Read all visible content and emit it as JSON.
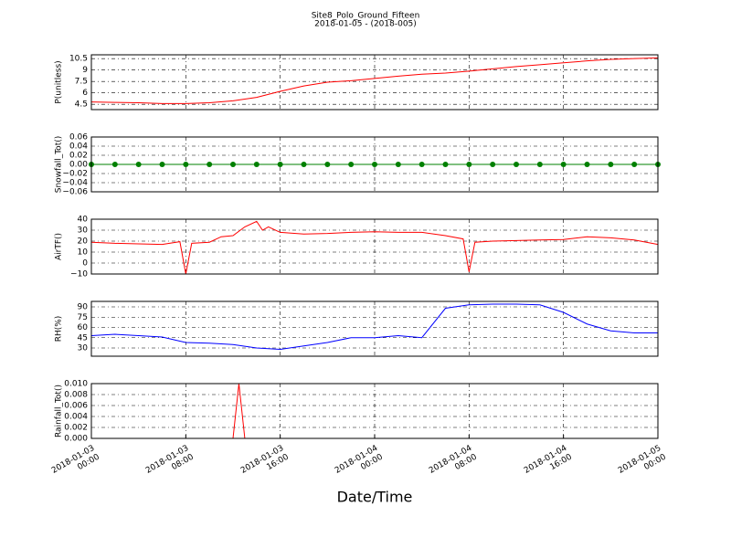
{
  "chart_data": [
    {
      "type": "line",
      "title": "Site8_Polo_Ground_Fifteen",
      "subtitle": "2018-01-05 - (2018-005)",
      "ylabel": "P(unitless)",
      "color": "#ff0000",
      "grid": true,
      "x": [
        "2018-01-03 00:00",
        "2018-01-03 02:00",
        "2018-01-03 04:00",
        "2018-01-03 06:00",
        "2018-01-03 08:00",
        "2018-01-03 10:00",
        "2018-01-03 12:00",
        "2018-01-03 14:00",
        "2018-01-03 16:00",
        "2018-01-03 18:00",
        "2018-01-03 20:00",
        "2018-01-03 22:00",
        "2018-01-04 00:00",
        "2018-01-04 02:00",
        "2018-01-04 04:00",
        "2018-01-04 06:00",
        "2018-01-04 08:00",
        "2018-01-04 10:00",
        "2018-01-04 12:00",
        "2018-01-04 14:00",
        "2018-01-04 16:00",
        "2018-01-04 18:00",
        "2018-01-04 20:00",
        "2018-01-04 22:00",
        "2018-01-05 00:00"
      ],
      "values": [
        4.8,
        4.75,
        4.7,
        4.6,
        4.6,
        4.7,
        4.95,
        5.4,
        6.2,
        6.9,
        7.4,
        7.6,
        7.9,
        8.2,
        8.45,
        8.6,
        8.85,
        9.15,
        9.45,
        9.7,
        9.95,
        10.2,
        10.4,
        10.5,
        10.6
      ],
      "ylim": [
        3.8,
        11.0
      ],
      "yticks": [
        4.5,
        6.0,
        7.5,
        9.0,
        10.5
      ]
    },
    {
      "type": "line",
      "ylabel": "Snowfall_Tot()",
      "color": "#008000",
      "marker": "o",
      "grid": true,
      "x": [
        "2018-01-03 00:00",
        "2018-01-03 02:00",
        "2018-01-03 04:00",
        "2018-01-03 06:00",
        "2018-01-03 08:00",
        "2018-01-03 10:00",
        "2018-01-03 12:00",
        "2018-01-03 14:00",
        "2018-01-03 16:00",
        "2018-01-03 18:00",
        "2018-01-03 20:00",
        "2018-01-03 22:00",
        "2018-01-04 00:00",
        "2018-01-04 02:00",
        "2018-01-04 04:00",
        "2018-01-04 06:00",
        "2018-01-04 08:00",
        "2018-01-04 10:00",
        "2018-01-04 12:00",
        "2018-01-04 14:00",
        "2018-01-04 16:00",
        "2018-01-04 18:00",
        "2018-01-04 20:00",
        "2018-01-04 22:00",
        "2018-01-05 00:00"
      ],
      "values": [
        0,
        0,
        0,
        0,
        0,
        0,
        0,
        0,
        0,
        0,
        0,
        0,
        0,
        0,
        0,
        0,
        0,
        0,
        0,
        0,
        0,
        0,
        0,
        0,
        0
      ],
      "ylim": [
        -0.06,
        0.06
      ],
      "yticks": [
        {
          "value": -0.06,
          "label": "−0.06"
        },
        {
          "value": -0.04,
          "label": "−0.04"
        },
        {
          "value": -0.02,
          "label": "−0.02"
        },
        {
          "value": 0,
          "label": "0.00"
        },
        0.02,
        0.04,
        0.06
      ]
    },
    {
      "type": "line",
      "ylabel": "AirTF()",
      "color": "#ff0000",
      "grid": true,
      "x": [
        "2018-01-03 00:00",
        "2018-01-03 02:00",
        "2018-01-03 04:00",
        "2018-01-03 06:00",
        "2018-01-03 07:30",
        "2018-01-03 08:00",
        "2018-01-03 08:30",
        "2018-01-03 10:00",
        "2018-01-03 11:00",
        "2018-01-03 12:00",
        "2018-01-03 13:00",
        "2018-01-03 14:00",
        "2018-01-03 14:30",
        "2018-01-03 15:00",
        "2018-01-03 16:00",
        "2018-01-03 18:00",
        "2018-01-03 20:00",
        "2018-01-03 22:00",
        "2018-01-04 00:00",
        "2018-01-04 02:00",
        "2018-01-04 04:00",
        "2018-01-04 06:00",
        "2018-01-04 07:30",
        "2018-01-04 08:00",
        "2018-01-04 08:30",
        "2018-01-04 10:00",
        "2018-01-04 12:00",
        "2018-01-04 14:00",
        "2018-01-04 16:00",
        "2018-01-04 18:00",
        "2018-01-04 20:00",
        "2018-01-04 22:00",
        "2018-01-05 00:00"
      ],
      "values": [
        19,
        18,
        17.5,
        17,
        19.5,
        -10,
        18,
        19,
        24,
        25,
        33,
        38,
        30,
        33,
        28,
        26.5,
        27,
        28,
        28.5,
        28,
        28,
        25,
        22,
        -8,
        19,
        20,
        20.5,
        21,
        21.5,
        24,
        23,
        21,
        17
      ],
      "ylim": [
        -10,
        40
      ],
      "yticks": [
        {
          "value": -10,
          "label": "−10"
        },
        0,
        10,
        20,
        30,
        40
      ]
    },
    {
      "type": "line",
      "ylabel": "RH(%)",
      "color": "#0000ff",
      "grid": true,
      "x": [
        "2018-01-03 00:00",
        "2018-01-03 02:00",
        "2018-01-03 04:00",
        "2018-01-03 06:00",
        "2018-01-03 08:00",
        "2018-01-03 10:00",
        "2018-01-03 12:00",
        "2018-01-03 14:00",
        "2018-01-03 16:00",
        "2018-01-03 18:00",
        "2018-01-03 20:00",
        "2018-01-03 22:00",
        "2018-01-04 00:00",
        "2018-01-04 02:00",
        "2018-01-04 04:00",
        "2018-01-04 06:00",
        "2018-01-04 08:00",
        "2018-01-04 10:00",
        "2018-01-04 12:00",
        "2018-01-04 14:00",
        "2018-01-04 16:00",
        "2018-01-04 18:00",
        "2018-01-04 20:00",
        "2018-01-04 22:00",
        "2018-01-05 00:00"
      ],
      "values": [
        48,
        50,
        48,
        46,
        38,
        37,
        35,
        30,
        28,
        33,
        38,
        45,
        45,
        48,
        45,
        88,
        93,
        94,
        94,
        93,
        82,
        65,
        55,
        52,
        52
      ],
      "ylim": [
        18,
        98
      ],
      "yticks": [
        30,
        45,
        60,
        75,
        90
      ]
    },
    {
      "type": "line",
      "ylabel": "Rainfall_Tot()",
      "xlabel": "Date/Time",
      "color": "#ff0000",
      "grid": true,
      "x": [
        "2018-01-03 00:00",
        "2018-01-03 12:00",
        "2018-01-03 12:30",
        "2018-01-03 13:00",
        "2018-01-05 00:00"
      ],
      "values": [
        0,
        0,
        0.01,
        0,
        0
      ],
      "ylim": [
        0,
        0.01
      ],
      "yticks": [
        {
          "value": 0,
          "label": "0.000"
        },
        {
          "value": 0.002,
          "label": "0.002"
        },
        {
          "value": 0.004,
          "label": "0.004"
        },
        {
          "value": 0.006,
          "label": "0.006"
        },
        {
          "value": 0.008,
          "label": "0.008"
        },
        {
          "value": 0.01,
          "label": "0.010"
        }
      ],
      "xlim": [
        "2018-01-03 00:00",
        "2018-01-05 00:00"
      ],
      "xticks": [
        {
          "value": "2018-01-03 00:00",
          "label": "2018-01-03\n00:00"
        },
        {
          "value": "2018-01-03 08:00",
          "label": "2018-01-03\n08:00"
        },
        {
          "value": "2018-01-03 16:00",
          "label": "2018-01-03\n16:00"
        },
        {
          "value": "2018-01-04 00:00",
          "label": "2018-01-04\n00:00"
        },
        {
          "value": "2018-01-04 08:00",
          "label": "2018-01-04\n08:00"
        },
        {
          "value": "2018-01-04 16:00",
          "label": "2018-01-04\n16:00"
        },
        {
          "value": "2018-01-05 00:00",
          "label": "2018-01-05\n00:00"
        }
      ]
    }
  ]
}
